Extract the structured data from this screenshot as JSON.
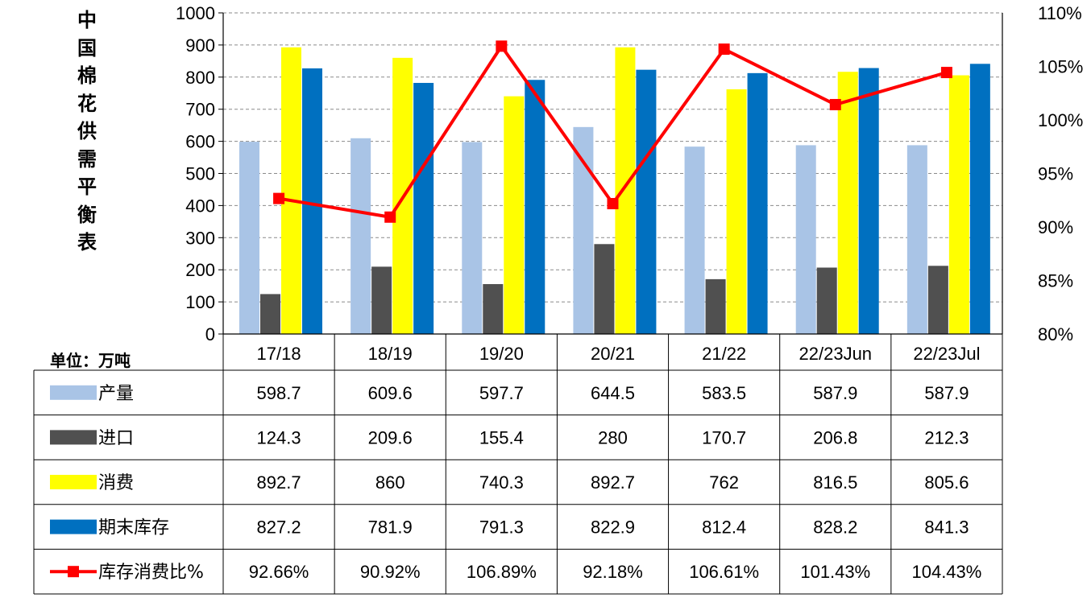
{
  "title_chars": [
    "中",
    "国",
    "棉",
    "花",
    "供",
    "需",
    "平",
    "衡",
    "表"
  ],
  "unit_label": "单位：万吨",
  "chart_data": {
    "type": "bar",
    "title": "中国棉花供需平衡表",
    "categories": [
      "17/18",
      "18/19",
      "19/20",
      "20/21",
      "21/22",
      "22/23Jun",
      "22/23Jul"
    ],
    "y_left": {
      "ticks": [
        "0",
        "100",
        "200",
        "300",
        "400",
        "500",
        "600",
        "700",
        "800",
        "900",
        "1000"
      ],
      "ylim": [
        0,
        1000
      ]
    },
    "y_right": {
      "ticks": [
        "80%",
        "85%",
        "90%",
        "95%",
        "100%",
        "105%",
        "110%"
      ],
      "ylim": [
        80,
        110
      ]
    },
    "grid": true,
    "legend_placement": "table-left",
    "series": [
      {
        "name": "产量",
        "kind": "bar",
        "color": "#A9C4E6",
        "values": [
          598.7,
          609.6,
          597.7,
          644.5,
          583.5,
          587.9,
          587.9
        ],
        "display": [
          "598.7",
          "609.6",
          "597.7",
          "644.5",
          "583.5",
          "587.9",
          "587.9"
        ]
      },
      {
        "name": "进口",
        "kind": "bar",
        "color": "#505050",
        "values": [
          124.3,
          209.6,
          155.4,
          280,
          170.7,
          206.8,
          212.3
        ],
        "display": [
          "124.3",
          "209.6",
          "155.4",
          "280",
          "170.7",
          "206.8",
          "212.3"
        ]
      },
      {
        "name": "消费",
        "kind": "bar",
        "color": "#FFFF00",
        "values": [
          892.7,
          860,
          740.3,
          892.7,
          762,
          816.5,
          805.6
        ],
        "display": [
          "892.7",
          "860",
          "740.3",
          "892.7",
          "762",
          "816.5",
          "805.6"
        ]
      },
      {
        "name": "期末库存",
        "kind": "bar",
        "color": "#0070C0",
        "values": [
          827.2,
          781.9,
          791.3,
          822.9,
          812.4,
          828.2,
          841.3
        ],
        "display": [
          "827.2",
          "781.9",
          "791.3",
          "822.9",
          "812.4",
          "828.2",
          "841.3"
        ]
      },
      {
        "name": "库存消费比%",
        "kind": "line",
        "axis": "right",
        "color": "#FF0000",
        "values": [
          92.66,
          90.92,
          106.89,
          92.18,
          106.61,
          101.43,
          104.43
        ],
        "display": [
          "92.66%",
          "90.92%",
          "106.89%",
          "92.18%",
          "106.61%",
          "101.43%",
          "104.43%"
        ]
      }
    ]
  }
}
